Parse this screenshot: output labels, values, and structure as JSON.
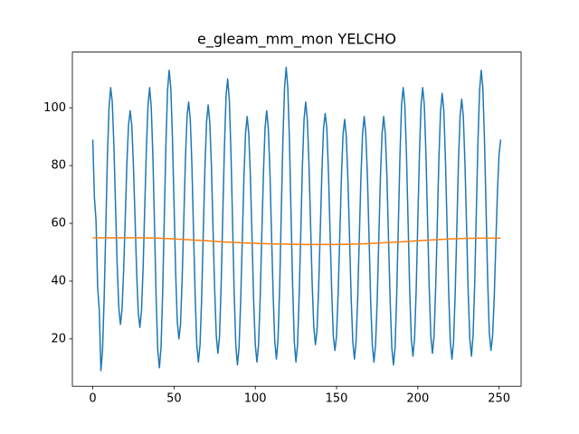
{
  "chart_data": {
    "type": "line",
    "title": "e_gleam_mm_mon YELCHO",
    "xlim": [
      -12.55,
      263.55
    ],
    "ylim": [
      3.6,
      119.3
    ],
    "xticks": [
      0,
      50,
      100,
      150,
      200,
      250
    ],
    "yticks": [
      20,
      40,
      60,
      80,
      100
    ],
    "series": [
      {
        "color": "#1f77b4",
        "x": [
          0,
          1,
          2,
          3,
          4,
          5,
          6,
          7,
          8,
          9,
          10,
          11,
          12,
          13,
          14,
          15,
          16,
          17,
          18,
          19,
          20,
          21,
          22,
          23,
          24,
          25,
          26,
          27,
          28,
          29,
          30,
          31,
          32,
          33,
          34,
          35,
          36,
          37,
          38,
          39,
          40,
          41,
          42,
          43,
          44,
          45,
          46,
          47,
          48,
          49,
          50,
          51,
          52,
          53,
          54,
          55,
          56,
          57,
          58,
          59,
          60,
          61,
          62,
          63,
          64,
          65,
          66,
          67,
          68,
          69,
          70,
          71,
          72,
          73,
          74,
          75,
          76,
          77,
          78,
          79,
          80,
          81,
          82,
          83,
          84,
          85,
          86,
          87,
          88,
          89,
          90,
          91,
          92,
          93,
          94,
          95,
          96,
          97,
          98,
          99,
          100,
          101,
          102,
          103,
          104,
          105,
          106,
          107,
          108,
          109,
          110,
          111,
          112,
          113,
          114,
          115,
          116,
          117,
          118,
          119,
          120,
          121,
          122,
          123,
          124,
          125,
          126,
          127,
          128,
          129,
          130,
          131,
          132,
          133,
          134,
          135,
          136,
          137,
          138,
          139,
          140,
          141,
          142,
          143,
          144,
          145,
          146,
          147,
          148,
          149,
          150,
          151,
          152,
          153,
          154,
          155,
          156,
          157,
          158,
          159,
          160,
          161,
          162,
          163,
          164,
          165,
          166,
          167,
          168,
          169,
          170,
          171,
          172,
          173,
          174,
          175,
          176,
          177,
          178,
          179,
          180,
          181,
          182,
          183,
          184,
          185,
          186,
          187,
          188,
          189,
          190,
          191,
          192,
          193,
          194,
          195,
          196,
          197,
          198,
          199,
          200,
          201,
          202,
          203,
          204,
          205,
          206,
          207,
          208,
          209,
          210,
          211,
          212,
          213,
          214,
          215,
          216,
          217,
          218,
          219,
          220,
          221,
          222,
          223,
          224,
          225,
          226,
          227,
          228,
          229,
          230,
          231,
          232,
          233,
          234,
          235,
          236,
          237,
          238,
          239,
          240,
          241,
          242,
          243,
          244,
          245,
          246,
          247,
          248,
          249,
          250,
          251
        ],
        "values": [
          89,
          69,
          61,
          38,
          30,
          9,
          16,
          34,
          58,
          83,
          100,
          107,
          102,
          87,
          66,
          46,
          31,
          25,
          30,
          44,
          62,
          81,
          94,
          99,
          94,
          80,
          62,
          43,
          29,
          24,
          30,
          45,
          66,
          86,
          101,
          107,
          100,
          83,
          59,
          34,
          16,
          10,
          17,
          36,
          62,
          87,
          106,
          113,
          107,
          90,
          67,
          43,
          26,
          20,
          25,
          41,
          61,
          82,
          97,
          102,
          96,
          80,
          57,
          35,
          18,
          12,
          18,
          34,
          57,
          79,
          95,
          101,
          95,
          80,
          58,
          37,
          21,
          15,
          21,
          39,
          63,
          86,
          104,
          110,
          103,
          85,
          61,
          36,
          18,
          11,
          17,
          33,
          54,
          76,
          91,
          97,
          91,
          76,
          55,
          33,
          18,
          12,
          18,
          34,
          56,
          77,
          93,
          99,
          93,
          78,
          56,
          35,
          19,
          13,
          20,
          38,
          64,
          89,
          107,
          114,
          107,
          89,
          63,
          38,
          19,
          12,
          18,
          35,
          57,
          80,
          96,
          102,
          96,
          81,
          60,
          39,
          24,
          18,
          23,
          38,
          58,
          78,
          93,
          98,
          93,
          78,
          57,
          37,
          21,
          16,
          21,
          36,
          56,
          76,
          91,
          96,
          90,
          75,
          55,
          34,
          19,
          13,
          19,
          34,
          55,
          76,
          91,
          97,
          91,
          76,
          55,
          33,
          18,
          12,
          18,
          33,
          55,
          76,
          91,
          97,
          91,
          76,
          54,
          33,
          17,
          11,
          17,
          35,
          59,
          83,
          101,
          107,
          101,
          84,
          61,
          37,
          20,
          14,
          20,
          37,
          61,
          84,
          101,
          107,
          101,
          84,
          61,
          38,
          21,
          15,
          21,
          38,
          60,
          83,
          99,
          105,
          99,
          82,
          59,
          36,
          19,
          13,
          19,
          36,
          58,
          81,
          97,
          103,
          97,
          81,
          59,
          36,
          20,
          14,
          21,
          39,
          64,
          88,
          106,
          113,
          107,
          89,
          65,
          40,
          22,
          16,
          21,
          34,
          53,
          71,
          84,
          89
        ]
      },
      {
        "color": "#ff7f0e",
        "x": [
          0,
          10,
          20,
          30,
          40,
          50,
          60,
          70,
          80,
          90,
          100,
          110,
          120,
          130,
          140,
          150,
          160,
          170,
          180,
          190,
          200,
          210,
          220,
          230,
          240,
          250,
          251
        ],
        "values": [
          55.0,
          55.0,
          55.0,
          55.0,
          54.9,
          54.6,
          54.3,
          54.0,
          53.6,
          53.3,
          53.1,
          52.9,
          52.8,
          52.7,
          52.7,
          52.7,
          52.8,
          53.0,
          53.3,
          53.6,
          54.0,
          54.3,
          54.6,
          54.8,
          54.9,
          54.9,
          54.9
        ]
      }
    ]
  }
}
